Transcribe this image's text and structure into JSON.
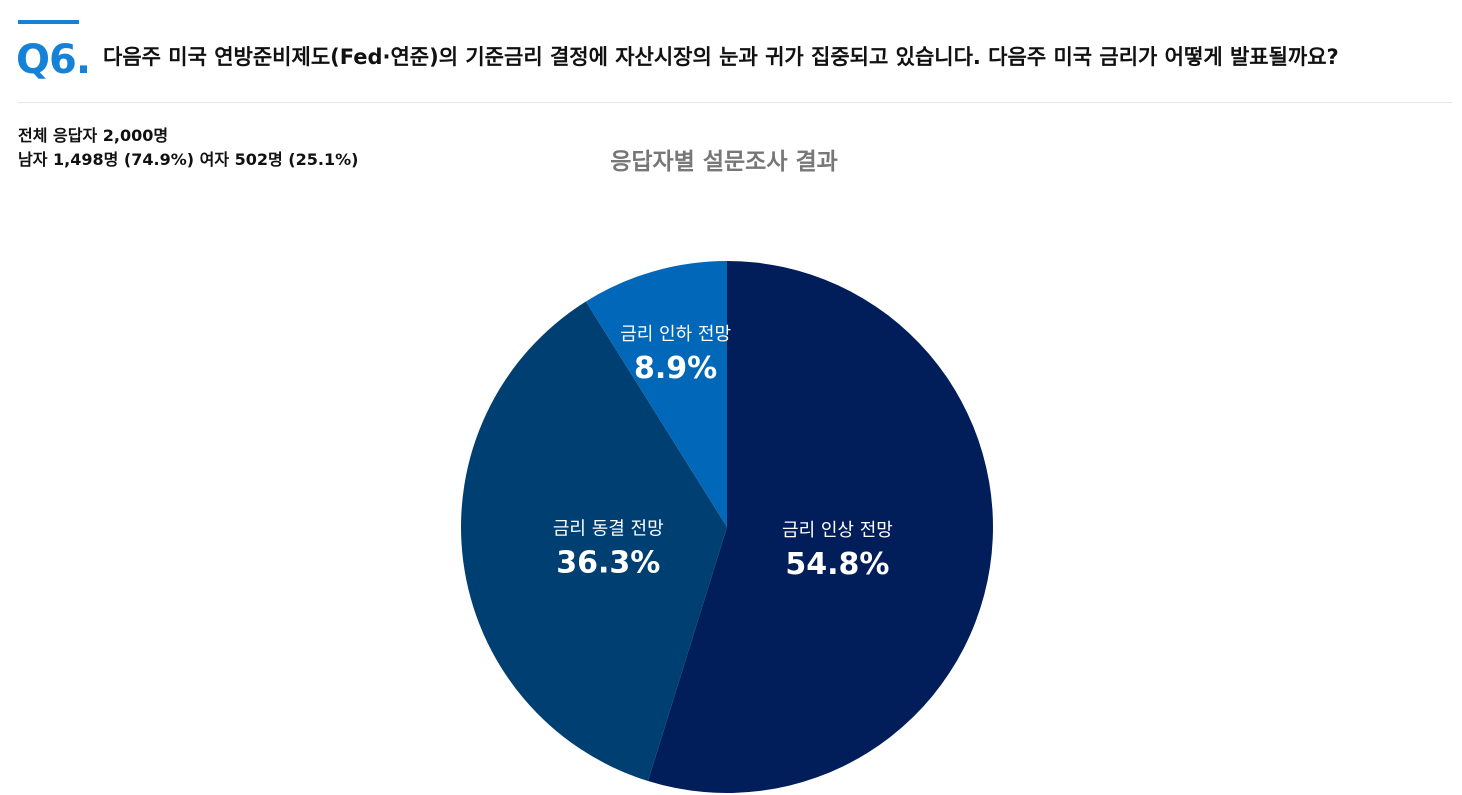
{
  "header": {
    "question_number": "Q6.",
    "question_text": "다음주 미국 연방준비제도(Fed·연준)의 기준금리 결정에 자산시장의 눈과 귀가 집중되고 있습니다. 다음주 미국 금리가 어떻게 발표될까요?"
  },
  "respondents": {
    "total": "전체 응답자 2,000명",
    "breakdown": "남자 1,498명 (74.9%) 여자 502명 (25.1%)"
  },
  "colors": {
    "accent": "#1582d8"
  },
  "chart_data": {
    "type": "pie",
    "title": "응답자별 설문조사 결과",
    "slices": [
      {
        "label": "금리 인상 전망",
        "value": 54.8,
        "display": "54.8%",
        "color": "#011e5b"
      },
      {
        "label": "금리 동결 전망",
        "value": 36.3,
        "display": "36.3%",
        "color": "#003f72"
      },
      {
        "label": "금리 인하 전망",
        "value": 8.9,
        "display": "8.9%",
        "color": "#0168b9"
      }
    ],
    "start_angle": "12 o'clock",
    "direction": "clockwise",
    "legend": "none",
    "labels": "inside"
  }
}
